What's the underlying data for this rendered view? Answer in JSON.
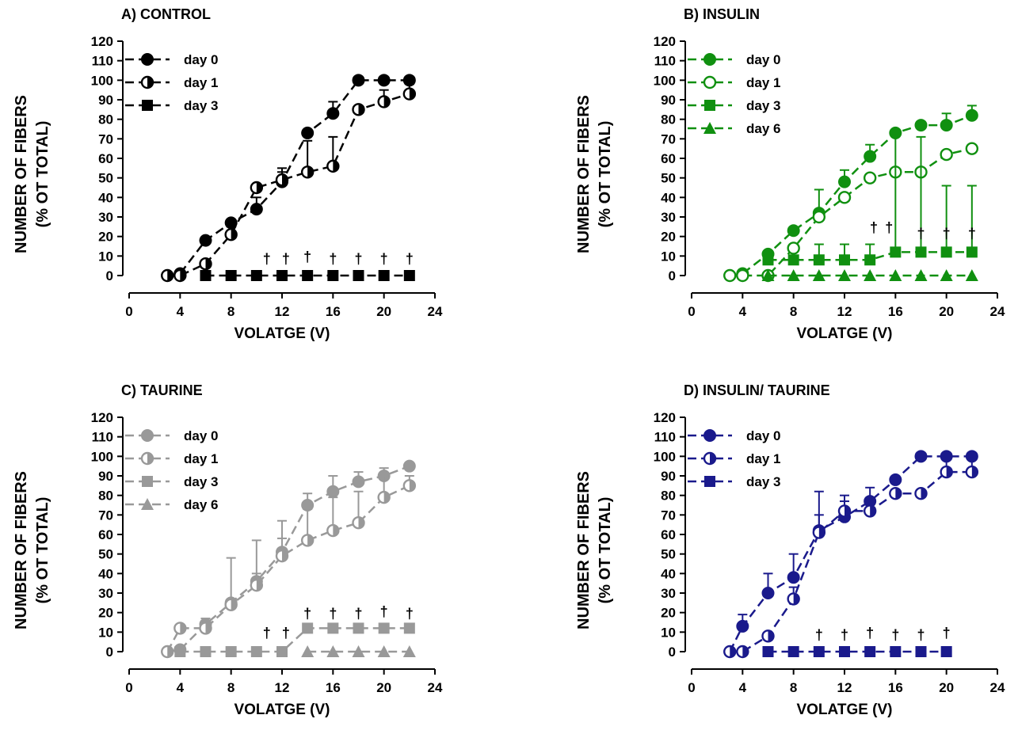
{
  "figure": {
    "panels_order": [
      "A",
      "B",
      "C",
      "D"
    ]
  },
  "chart_data": [
    {
      "id": "A",
      "type": "line",
      "title": "A) CONTROL",
      "xlabel": "VOLATGE (V)",
      "ylabel_line1": "NUMBER OF FIBERS",
      "ylabel_line2": "(% OT TOTAL)",
      "xlim": [
        0,
        24
      ],
      "ylim": [
        0,
        120
      ],
      "xticks": [
        0,
        4,
        8,
        12,
        16,
        20,
        24
      ],
      "xtick_labels": [
        "0",
        "4",
        "8",
        "12",
        "16",
        "20",
        "24"
      ],
      "yticks": [
        0,
        10,
        20,
        30,
        40,
        50,
        60,
        70,
        80,
        90,
        100,
        110,
        120
      ],
      "ytick_labels": [
        "0",
        "10",
        "20",
        "30",
        "40",
        "50",
        "60",
        "70",
        "80",
        "90",
        "100",
        "110",
        "120"
      ],
      "grid": false,
      "legend": "top-left",
      "color": "#000000",
      "series": [
        {
          "name": "day 0",
          "marker": "circle-filled",
          "x": [
            3,
            4,
            6,
            8,
            10,
            12,
            14,
            16,
            18,
            20,
            22
          ],
          "y": [
            0,
            1,
            18,
            27,
            34,
            48,
            73,
            83,
            100,
            100,
            100
          ],
          "err": [
            0,
            0,
            0,
            0,
            6,
            5,
            0,
            6,
            0,
            0,
            0
          ]
        },
        {
          "name": "day 1",
          "marker": "circle-half",
          "x": [
            3,
            4,
            6,
            8,
            10,
            12,
            14,
            16,
            18,
            20,
            22
          ],
          "y": [
            0,
            0,
            6,
            21,
            45,
            49,
            53,
            56,
            85,
            89,
            93
          ],
          "err": [
            0,
            0,
            0,
            4,
            0,
            6,
            16,
            15,
            0,
            6,
            5
          ]
        },
        {
          "name": "day 3",
          "marker": "square-filled",
          "x": [
            6,
            8,
            10,
            12,
            14,
            16,
            18,
            20,
            22
          ],
          "y": [
            0,
            0,
            0,
            0,
            0,
            0,
            0,
            0,
            0
          ],
          "err": [
            0,
            0,
            0,
            0,
            0,
            0,
            0,
            0,
            0
          ]
        }
      ],
      "annotations": [
        {
          "text": "†",
          "x": 10.8,
          "y": 6
        },
        {
          "text": "†",
          "x": 12.3,
          "y": 6
        },
        {
          "text": "†",
          "x": 14,
          "y": 7
        },
        {
          "text": "†",
          "x": 16,
          "y": 6
        },
        {
          "text": "†",
          "x": 18,
          "y": 6
        },
        {
          "text": "†",
          "x": 20,
          "y": 6
        },
        {
          "text": "†",
          "x": 22,
          "y": 6
        }
      ]
    },
    {
      "id": "B",
      "type": "line",
      "title": "B) INSULIN",
      "xlabel": "VOLATGE (V)",
      "ylabel_line1": "NUMBER OF FIBERS",
      "ylabel_line2": "(% OT TOTAL)",
      "xlim": [
        0,
        24
      ],
      "ylim": [
        0,
        120
      ],
      "xticks": [
        0,
        4,
        8,
        12,
        16,
        20,
        24
      ],
      "xtick_labels": [
        "0",
        "4",
        "8",
        "12",
        "16",
        "20",
        "24"
      ],
      "yticks": [
        0,
        10,
        20,
        30,
        40,
        50,
        60,
        70,
        80,
        90,
        100,
        110,
        120
      ],
      "ytick_labels": [
        "0",
        "10",
        "20",
        "30",
        "40",
        "50",
        "60",
        "70",
        "80",
        "90",
        "100",
        "110",
        "120"
      ],
      "grid": false,
      "legend": "top-left",
      "color": "#109010",
      "series": [
        {
          "name": "day 0",
          "marker": "circle-filled",
          "x": [
            3,
            4,
            6,
            8,
            10,
            12,
            14,
            16,
            18,
            20,
            22
          ],
          "y": [
            0,
            1,
            11,
            23,
            32,
            48,
            61,
            73,
            77,
            77,
            82
          ],
          "err": [
            0,
            0,
            0,
            0,
            12,
            6,
            6,
            0,
            0,
            6,
            5
          ]
        },
        {
          "name": "day 1",
          "marker": "circle-open",
          "x": [
            3,
            4,
            6,
            8,
            10,
            12,
            14,
            16,
            18,
            20,
            22
          ],
          "y": [
            0,
            0,
            0,
            14,
            30,
            40,
            50,
            53,
            53,
            62,
            65
          ],
          "err": [
            0,
            0,
            0,
            0,
            0,
            0,
            0,
            0,
            0,
            0,
            0
          ]
        },
        {
          "name": "day 3",
          "marker": "square-filled",
          "x": [
            6,
            8,
            10,
            12,
            14,
            16,
            18,
            20,
            22
          ],
          "y": [
            8,
            8,
            8,
            8,
            8,
            12,
            12,
            12,
            12
          ],
          "err": [
            0,
            0,
            8,
            8,
            8,
            61,
            59,
            34,
            34
          ]
        },
        {
          "name": "day 6",
          "marker": "triangle-filled",
          "x": [
            6,
            8,
            10,
            12,
            14,
            16,
            18,
            20,
            22
          ],
          "y": [
            0,
            0,
            0,
            0,
            0,
            0,
            0,
            0,
            0
          ],
          "err": [
            0,
            0,
            0,
            0,
            0,
            0,
            0,
            0,
            0
          ]
        }
      ],
      "annotations": [
        {
          "text": "†",
          "x": 14.3,
          "y": 22
        },
        {
          "text": "†",
          "x": 15.5,
          "y": 22
        },
        {
          "text": "†",
          "x": 18,
          "y": 19
        },
        {
          "text": "†",
          "x": 20,
          "y": 19
        },
        {
          "text": "†",
          "x": 22,
          "y": 19
        }
      ]
    },
    {
      "id": "C",
      "type": "line",
      "title": "C) TAURINE",
      "xlabel": "VOLATGE (V)",
      "ylabel_line1": "NUMBER OF FIBERS",
      "ylabel_line2": "(% OT TOTAL)",
      "xlim": [
        0,
        24
      ],
      "ylim": [
        0,
        120
      ],
      "xticks": [
        0,
        4,
        8,
        12,
        16,
        20,
        24
      ],
      "xtick_labels": [
        "0",
        "4",
        "8",
        "12",
        "16",
        "20",
        "24"
      ],
      "yticks": [
        0,
        10,
        20,
        30,
        40,
        50,
        60,
        70,
        80,
        90,
        100,
        110,
        120
      ],
      "ytick_labels": [
        "0",
        "10",
        "20",
        "30",
        "40",
        "50",
        "60",
        "70",
        "80",
        "90",
        "100",
        "110",
        "120"
      ],
      "grid": false,
      "legend": "top-left",
      "color": "#999999",
      "series": [
        {
          "name": "day 0",
          "marker": "circle-filled",
          "x": [
            3,
            4,
            6,
            8,
            10,
            12,
            14,
            16,
            18,
            20,
            22
          ],
          "y": [
            0,
            1,
            14,
            25,
            36,
            51,
            75,
            82,
            87,
            90,
            95
          ],
          "err": [
            0,
            0,
            3,
            0,
            4,
            7,
            6,
            8,
            5,
            4,
            0
          ]
        },
        {
          "name": "day 1",
          "marker": "circle-half",
          "x": [
            3,
            4,
            6,
            8,
            10,
            12,
            14,
            16,
            18,
            20,
            22
          ],
          "y": [
            0,
            12,
            12,
            24,
            34,
            49,
            57,
            62,
            66,
            79,
            85
          ],
          "err": [
            0,
            0,
            0,
            24,
            23,
            18,
            16,
            17,
            16,
            11,
            5
          ]
        },
        {
          "name": "day 3",
          "marker": "square-filled",
          "x": [
            4,
            6,
            8,
            10,
            12,
            14,
            16,
            18,
            20,
            22
          ],
          "y": [
            0,
            0,
            0,
            0,
            0,
            12,
            12,
            12,
            12,
            12
          ],
          "err": [
            0,
            0,
            0,
            0,
            0,
            0,
            0,
            0,
            0,
            0
          ]
        },
        {
          "name": "day 6",
          "marker": "triangle-filled",
          "x": [
            14,
            16,
            18,
            20,
            22
          ],
          "y": [
            0,
            0,
            0,
            0,
            0
          ],
          "err": [
            0,
            0,
            0,
            0,
            0
          ]
        }
      ],
      "annotations": [
        {
          "text": "†",
          "x": 10.8,
          "y": 7
        },
        {
          "text": "†",
          "x": 12.3,
          "y": 7
        },
        {
          "text": "†",
          "x": 14,
          "y": 17
        },
        {
          "text": "†",
          "x": 16,
          "y": 17
        },
        {
          "text": "†",
          "x": 18,
          "y": 17
        },
        {
          "text": "†",
          "x": 20,
          "y": 18
        },
        {
          "text": "†",
          "x": 22,
          "y": 17
        }
      ]
    },
    {
      "id": "D",
      "type": "line",
      "title": "D) INSULIN/ TAURINE",
      "xlabel": "VOLATGE (V)",
      "ylabel_line1": "NUMBER OF FIBERS",
      "ylabel_line2": "(% OT TOTAL)",
      "xlim": [
        0,
        24
      ],
      "ylim": [
        0,
        120
      ],
      "xticks": [
        0,
        4,
        8,
        12,
        16,
        20,
        24
      ],
      "xtick_labels": [
        "0",
        "4",
        "8",
        "12",
        "16",
        "20",
        "24"
      ],
      "yticks": [
        0,
        10,
        20,
        30,
        40,
        50,
        60,
        70,
        80,
        90,
        100,
        110,
        120
      ],
      "ytick_labels": [
        "0",
        "10",
        "20",
        "30",
        "40",
        "50",
        "60",
        "70",
        "80",
        "90",
        "100",
        "110",
        "120"
      ],
      "grid": false,
      "legend": "top-left",
      "color": "#1a1a8c",
      "series": [
        {
          "name": "day 0",
          "marker": "circle-filled",
          "x": [
            3,
            4,
            6,
            8,
            10,
            12,
            14,
            16,
            18,
            20,
            22
          ],
          "y": [
            0,
            13,
            30,
            38,
            62,
            69,
            77,
            88,
            100,
            100,
            100
          ],
          "err": [
            0,
            6,
            10,
            12,
            8,
            8,
            0,
            0,
            0,
            0,
            0
          ]
        },
        {
          "name": "day 1",
          "marker": "circle-half",
          "x": [
            3,
            4,
            6,
            8,
            10,
            12,
            14,
            16,
            18,
            20,
            22
          ],
          "y": [
            0,
            0,
            8,
            27,
            61,
            72,
            72,
            81,
            81,
            92,
            92
          ],
          "err": [
            0,
            0,
            0,
            6,
            21,
            8,
            12,
            0,
            0,
            8,
            8
          ]
        },
        {
          "name": "day 3",
          "marker": "square-filled",
          "x": [
            6,
            8,
            10,
            12,
            14,
            16,
            18,
            20
          ],
          "y": [
            0,
            0,
            0,
            0,
            0,
            0,
            0,
            0
          ],
          "err": [
            0,
            0,
            0,
            0,
            0,
            0,
            0,
            0
          ]
        }
      ],
      "annotations": [
        {
          "text": "†",
          "x": 10,
          "y": 6
        },
        {
          "text": "†",
          "x": 12,
          "y": 6
        },
        {
          "text": "†",
          "x": 14,
          "y": 7
        },
        {
          "text": "†",
          "x": 16,
          "y": 6
        },
        {
          "text": "†",
          "x": 18,
          "y": 6
        },
        {
          "text": "†",
          "x": 20,
          "y": 7
        }
      ]
    }
  ]
}
